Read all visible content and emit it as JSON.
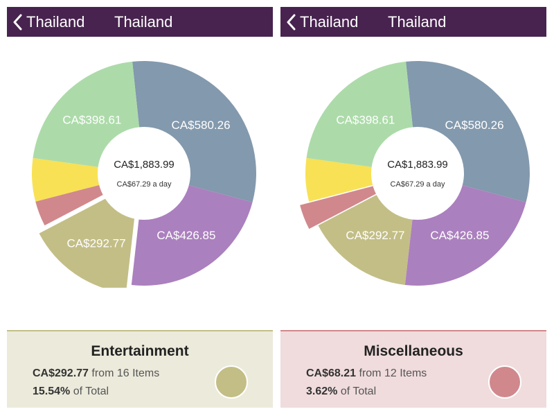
{
  "screens": [
    {
      "nav": {
        "back_label": "Thailand",
        "title": "Thailand"
      },
      "chart_data": {
        "type": "pie",
        "center_total": "CA$1,883.99",
        "center_daily": "CA$67.29 a day",
        "selected_index": 2,
        "slices": [
          {
            "value": 580.26,
            "label": "CA$580.26",
            "color": "#8399ad"
          },
          {
            "value": 426.85,
            "label": "CA$426.85",
            "color": "#ab80be"
          },
          {
            "value": 292.77,
            "label": "CA$292.77",
            "color": "#c3be86"
          },
          {
            "value": 68.21,
            "label": "",
            "color": "#d0888c"
          },
          {
            "value": 117.29,
            "label": "",
            "color": "#f8e155"
          },
          {
            "value": 398.61,
            "label": "CA$398.61",
            "color": "#acdba9"
          }
        ]
      },
      "detail": {
        "title": "Entertainment",
        "amount": "CA$292.77",
        "items_text": "from 16 Items",
        "percent": "15.54%",
        "percent_suffix": "of Total",
        "bg_color": "#eceadb",
        "divider_color": "#c3be86",
        "swatch_color": "#c3be86"
      }
    },
    {
      "nav": {
        "back_label": "Thailand",
        "title": "Thailand"
      },
      "chart_data": {
        "type": "pie",
        "center_total": "CA$1,883.99",
        "center_daily": "CA$67.29 a day",
        "selected_index": 3,
        "slices": [
          {
            "value": 580.26,
            "label": "CA$580.26",
            "color": "#8399ad"
          },
          {
            "value": 426.85,
            "label": "CA$426.85",
            "color": "#ab80be"
          },
          {
            "value": 292.77,
            "label": "CA$292.77",
            "color": "#c3be86"
          },
          {
            "value": 68.21,
            "label": "",
            "color": "#d0888c"
          },
          {
            "value": 117.29,
            "label": "",
            "color": "#f8e155"
          },
          {
            "value": 398.61,
            "label": "CA$398.61",
            "color": "#acdba9"
          }
        ]
      },
      "detail": {
        "title": "Miscellaneous",
        "amount": "CA$68.21",
        "items_text": "from 12 Items",
        "percent": "3.62%",
        "percent_suffix": "of Total",
        "bg_color": "#f0dcdd",
        "divider_color": "#d0888c",
        "swatch_color": "#d0888c"
      }
    }
  ]
}
